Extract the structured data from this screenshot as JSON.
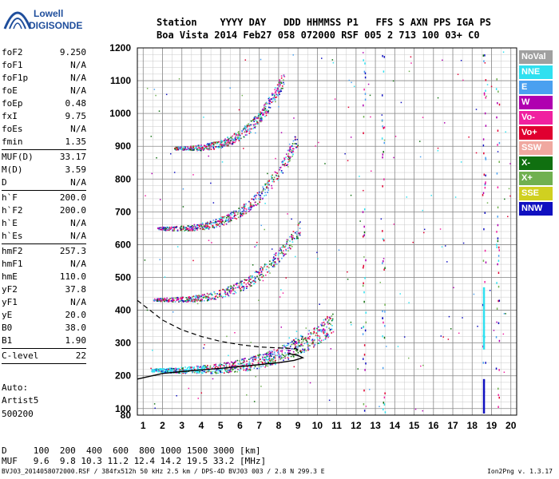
{
  "logo": {
    "line1": "Lowell",
    "line2": "DIGISONDE"
  },
  "header": {
    "line1": "Station    YYYY DAY   DDD HHMMSS P1   FFS S AXN PPS IGA PS",
    "line2": "Boa Vista 2014 Feb27 058 072000 RSF 005 2 713 100 03+ C0"
  },
  "params": [
    {
      "label": "foF2",
      "value": "9.250"
    },
    {
      "label": "foF1",
      "value": "N/A"
    },
    {
      "label": "foF1p",
      "value": "N/A"
    },
    {
      "label": "foE",
      "value": "N/A"
    },
    {
      "label": "foEp",
      "value": "0.48"
    },
    {
      "label": "fxI",
      "value": "9.75"
    },
    {
      "label": "foEs",
      "value": "N/A"
    },
    {
      "label": "fmin",
      "value": "1.35"
    },
    {
      "sep": true
    },
    {
      "label": "MUF(D)",
      "value": "33.17"
    },
    {
      "label": "M(D)",
      "value": "3.59"
    },
    {
      "label": "D",
      "value": "N/A"
    },
    {
      "sep": true
    },
    {
      "label": "h`F",
      "value": "200.0"
    },
    {
      "label": "h`F2",
      "value": "200.0"
    },
    {
      "label": "h`E",
      "value": "N/A"
    },
    {
      "label": "h`Es",
      "value": "N/A"
    },
    {
      "sep": true
    },
    {
      "label": "hmF2",
      "value": "257.3"
    },
    {
      "label": "hmF1",
      "value": "N/A"
    },
    {
      "label": "hmE",
      "value": "110.0"
    },
    {
      "label": "yF2",
      "value": "37.8"
    },
    {
      "label": "yF1",
      "value": "N/A"
    },
    {
      "label": "yE",
      "value": "20.0"
    },
    {
      "label": "B0",
      "value": "38.0"
    },
    {
      "label": "B1",
      "value": "1.90"
    },
    {
      "sep": true
    },
    {
      "label": "C-level",
      "value": "22"
    },
    {
      "sep": true
    }
  ],
  "auto": {
    "line1": "Auto:",
    "line2": "Artist5",
    "line3": "500200"
  },
  "muf_table": {
    "d_row": "D     100  200  400  600  800 1000 1500 3000 [km]",
    "muf_row": "MUF   9.6  9.8 10.3 11.2 12.4 14.2 19.5 33.2 [MHz]"
  },
  "footer": "BVJ03_2014058072000.RSF / 384fx512h 50 kHz 2.5 km / DPS-4D BVJ03 003 / 2.8 N 299.3 E",
  "version": "Ion2Png v. 1.3.17",
  "legend": [
    {
      "label": "NoVal",
      "color": "#a0a0a0"
    },
    {
      "label": "NNE",
      "color": "#2fe0f0"
    },
    {
      "label": "E",
      "color": "#4aa0f0"
    },
    {
      "label": "W",
      "color": "#b000b0"
    },
    {
      "label": "Vo-",
      "color": "#f020a0"
    },
    {
      "label": "Vo+",
      "color": "#e00030"
    },
    {
      "label": "SSW",
      "color": "#f0a8a0"
    },
    {
      "label": "X-",
      "color": "#107010"
    },
    {
      "label": "X+",
      "color": "#70b050"
    },
    {
      "label": "SSE",
      "color": "#d0d020"
    },
    {
      "label": "NNW",
      "color": "#1010c0"
    }
  ],
  "chart_data": {
    "type": "scatter",
    "xlim": [
      0.7,
      20.3
    ],
    "ylim": [
      80,
      1200
    ],
    "x_ticks": [
      1,
      2,
      3,
      4,
      5,
      6,
      7,
      8,
      9,
      10,
      11,
      12,
      13,
      14,
      15,
      16,
      17,
      18,
      19,
      20
    ],
    "y_ticks": [
      80,
      100,
      200,
      300,
      400,
      500,
      600,
      700,
      800,
      900,
      1000,
      1100,
      1200
    ],
    "grid": true,
    "traces": [
      {
        "name": "O-trace 1st hop",
        "f_start": 1.4,
        "f_end": 10.8,
        "h_start": 218,
        "h_end": 365
      },
      {
        "name": "2nd hop",
        "f_start": 1.5,
        "f_end": 9.1,
        "h_start": 433,
        "h_end": 655
      },
      {
        "name": "3rd hop",
        "f_start": 1.7,
        "f_end": 9.0,
        "h_start": 650,
        "h_end": 930
      },
      {
        "name": "4th hop",
        "f_start": 2.6,
        "f_end": 8.3,
        "h_start": 895,
        "h_end": 1115
      }
    ],
    "profile_dashed": [
      [
        0.7,
        430
      ],
      [
        2,
        370
      ],
      [
        3,
        340
      ],
      [
        4,
        320
      ],
      [
        5,
        305
      ],
      [
        6,
        295
      ],
      [
        7,
        288
      ],
      [
        8,
        285
      ],
      [
        8.9,
        283
      ],
      [
        9.2,
        270
      ]
    ],
    "profile_solid": [
      [
        0.7,
        190
      ],
      [
        2,
        207
      ],
      [
        3,
        213
      ],
      [
        4,
        218
      ],
      [
        5,
        223
      ],
      [
        6,
        228
      ],
      [
        7,
        234
      ],
      [
        8,
        240
      ],
      [
        8.8,
        247
      ],
      [
        9.25,
        255
      ],
      [
        9.0,
        262
      ],
      [
        8.5,
        268
      ]
    ]
  }
}
